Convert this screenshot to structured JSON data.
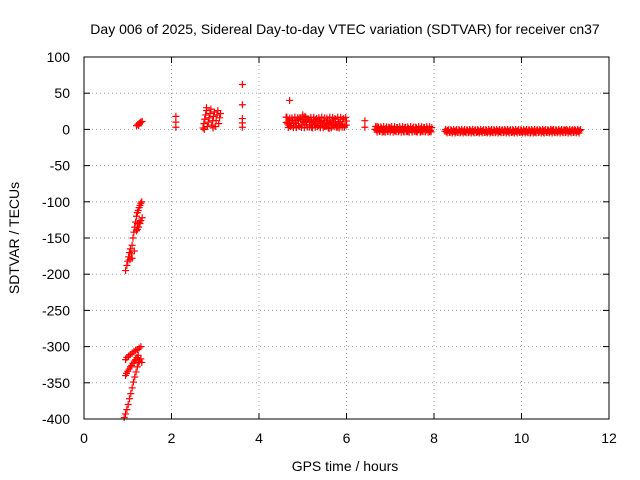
{
  "chart_data": {
    "type": "scatter",
    "title": "Day 006 of 2025, Sidereal Day-to-day VTEC variation (SDTVAR) for receiver cn37",
    "xlabel": "GPS time / hours",
    "ylabel": "SDTVAR / TECUs",
    "xlim": [
      0,
      12
    ],
    "ylim": [
      -400,
      100
    ],
    "grid": true,
    "marker": "+",
    "color": "#ff0000",
    "xticks": [
      0,
      2,
      4,
      6,
      8,
      10,
      12
    ],
    "yticks": [
      -400,
      -350,
      -300,
      -250,
      -200,
      -150,
      -100,
      -50,
      0,
      50,
      100
    ],
    "series": [
      {
        "name": "SDTVAR",
        "points": [
          [
            0.95,
            -195
          ],
          [
            0.98,
            -188
          ],
          [
            1.0,
            -182
          ],
          [
            1.02,
            -176
          ],
          [
            1.04,
            -170
          ],
          [
            1.06,
            -165
          ],
          [
            1.08,
            -172
          ],
          [
            1.1,
            -160
          ],
          [
            1.12,
            -150
          ],
          [
            1.14,
            -142
          ],
          [
            1.16,
            -135
          ],
          [
            1.18,
            -128
          ],
          [
            1.2,
            -120
          ],
          [
            1.22,
            -115
          ],
          [
            1.24,
            -112
          ],
          [
            1.26,
            -108
          ],
          [
            1.28,
            -105
          ],
          [
            1.3,
            -102
          ],
          [
            1.32,
            -100
          ],
          [
            1.05,
            -180
          ],
          [
            1.1,
            -178
          ],
          [
            1.15,
            -168
          ],
          [
            1.2,
            -140
          ],
          [
            1.22,
            -138
          ],
          [
            1.25,
            -135
          ],
          [
            1.28,
            -130
          ],
          [
            1.3,
            -126
          ],
          [
            1.33,
            -122
          ],
          [
            1.22,
            -130
          ],
          [
            1.26,
            -128
          ],
          [
            0.95,
            -340
          ],
          [
            0.97,
            -337
          ],
          [
            1.0,
            -334
          ],
          [
            1.03,
            -331
          ],
          [
            1.06,
            -328
          ],
          [
            1.09,
            -326
          ],
          [
            1.12,
            -323
          ],
          [
            1.15,
            -320
          ],
          [
            1.18,
            -318
          ],
          [
            1.21,
            -315
          ],
          [
            1.24,
            -312
          ],
          [
            1.27,
            -320
          ],
          [
            1.3,
            -317
          ],
          [
            1.32,
            -322
          ],
          [
            0.92,
            -398
          ],
          [
            0.95,
            -393
          ],
          [
            0.98,
            -387
          ],
          [
            1.01,
            -380
          ],
          [
            1.04,
            -372
          ],
          [
            1.07,
            -365
          ],
          [
            1.1,
            -357
          ],
          [
            1.13,
            -349
          ],
          [
            1.16,
            -342
          ],
          [
            1.19,
            -335
          ],
          [
            1.22,
            -328
          ],
          [
            1.25,
            -322
          ],
          [
            0.95,
            -318
          ],
          [
            0.98,
            -315
          ],
          [
            1.02,
            -313
          ],
          [
            1.06,
            -311
          ],
          [
            1.1,
            -309
          ],
          [
            1.14,
            -307
          ],
          [
            1.18,
            -305
          ],
          [
            1.22,
            -304
          ],
          [
            1.26,
            -302
          ],
          [
            1.3,
            -300
          ],
          [
            1.2,
            5
          ],
          [
            1.23,
            7
          ],
          [
            1.26,
            8
          ],
          [
            1.28,
            9
          ],
          [
            1.3,
            10
          ],
          [
            1.33,
            11
          ],
          [
            1.25,
            5
          ],
          [
            2.1,
            3
          ],
          [
            2.1,
            10
          ],
          [
            2.1,
            18
          ],
          [
            2.72,
            2
          ],
          [
            2.74,
            8
          ],
          [
            2.76,
            14
          ],
          [
            2.78,
            20
          ],
          [
            2.8,
            26
          ],
          [
            2.82,
            4
          ],
          [
            2.84,
            10
          ],
          [
            2.86,
            16
          ],
          [
            2.88,
            22
          ],
          [
            2.9,
            28
          ],
          [
            2.92,
            6
          ],
          [
            2.94,
            12
          ],
          [
            2.96,
            18
          ],
          [
            2.98,
            24
          ],
          [
            3.0,
            4
          ],
          [
            3.02,
            12
          ],
          [
            3.04,
            20
          ],
          [
            3.06,
            26
          ],
          [
            3.08,
            8
          ],
          [
            3.1,
            16
          ],
          [
            3.12,
            22
          ],
          [
            2.75,
            0
          ],
          [
            2.8,
            30
          ],
          [
            2.95,
            2
          ],
          [
            3.62,
            62
          ],
          [
            3.62,
            34
          ],
          [
            3.62,
            15
          ],
          [
            3.62,
            9
          ],
          [
            3.62,
            3
          ],
          [
            4.7,
            40
          ],
          [
            4.62,
            17
          ],
          [
            4.66,
            10
          ],
          [
            4.7,
            5
          ],
          [
            4.75,
            13
          ],
          [
            4.8,
            8
          ],
          [
            4.85,
            3
          ],
          [
            4.9,
            14
          ],
          [
            4.95,
            16
          ],
          [
            5.0,
            20
          ],
          [
            5.05,
            18
          ],
          [
            5.1,
            14
          ],
          [
            5.15,
            10
          ],
          [
            5.2,
            6
          ],
          [
            5.25,
            12
          ],
          [
            5.3,
            9
          ],
          [
            5.35,
            5
          ],
          [
            5.4,
            11
          ],
          [
            5.45,
            8
          ],
          [
            5.5,
            4
          ],
          [
            5.55,
            10
          ],
          [
            5.6,
            7
          ],
          [
            5.65,
            3
          ],
          [
            5.7,
            9
          ],
          [
            5.75,
            6
          ],
          [
            5.8,
            3
          ],
          [
            5.85,
            8
          ],
          [
            5.9,
            5
          ],
          [
            5.95,
            3
          ],
          [
            6.0,
            6
          ],
          [
            5.05,
            10
          ],
          [
            5.2,
            3
          ],
          [
            5.4,
            3
          ],
          [
            5.6,
            1
          ],
          [
            6.42,
            12
          ],
          [
            6.42,
            3
          ],
          [
            6.7,
            4
          ],
          [
            6.8,
            2
          ],
          [
            6.9,
            0
          ],
          [
            7.0,
            -1
          ],
          [
            7.1,
            -2
          ],
          [
            7.2,
            -2
          ],
          [
            7.3,
            -3
          ],
          [
            7.4,
            -3
          ],
          [
            7.5,
            -3
          ],
          [
            7.6,
            -3
          ],
          [
            7.7,
            -3
          ],
          [
            7.8,
            -3
          ],
          [
            7.9,
            -3
          ],
          [
            6.75,
            -1
          ],
          [
            6.85,
            -3
          ],
          [
            7.0,
            2
          ],
          [
            8.3,
            -2
          ],
          [
            8.4,
            -2
          ],
          [
            8.5,
            -3
          ],
          [
            8.6,
            -3
          ],
          [
            8.7,
            -3
          ],
          [
            8.8,
            -3
          ],
          [
            8.9,
            -3
          ],
          [
            9.0,
            -3
          ],
          [
            9.1,
            -3
          ],
          [
            9.2,
            -3
          ],
          [
            9.3,
            -3
          ],
          [
            9.4,
            -3
          ],
          [
            9.5,
            -3
          ],
          [
            9.6,
            -3
          ],
          [
            9.7,
            -3
          ],
          [
            9.8,
            -3
          ],
          [
            9.9,
            -3
          ],
          [
            10.0,
            -3
          ],
          [
            10.1,
            -3
          ],
          [
            10.2,
            -3
          ],
          [
            10.3,
            -3
          ],
          [
            10.4,
            -3
          ],
          [
            10.5,
            -2
          ],
          [
            10.6,
            -2
          ],
          [
            10.7,
            -2
          ],
          [
            10.8,
            -2
          ],
          [
            10.9,
            -2
          ],
          [
            11.0,
            -2
          ],
          [
            11.1,
            -2
          ],
          [
            11.2,
            -2
          ],
          [
            11.3,
            -2
          ],
          [
            10.2,
            -5
          ],
          [
            10.3,
            -4
          ],
          [
            10.5,
            -4
          ],
          [
            10.7,
            -1
          ],
          [
            11.0,
            -1
          ]
        ]
      }
    ],
    "segments": [
      {
        "x_start": 4.62,
        "x_end": 6.0,
        "y_lo": 2,
        "y_hi": 17
      },
      {
        "x_start": 6.65,
        "x_end": 7.95,
        "y_lo": -4,
        "y_hi": 4
      },
      {
        "x_start": 8.25,
        "x_end": 11.35,
        "y_lo": -5,
        "y_hi": 0
      }
    ]
  }
}
